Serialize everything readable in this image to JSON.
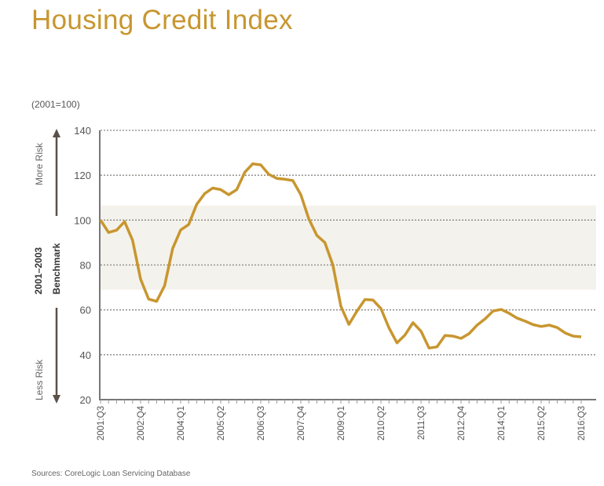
{
  "title": "Housing Credit Index",
  "source": "Sources:  CoreLogic Loan Servicing Database",
  "colors": {
    "line": "#c8962f",
    "title": "#c8962f",
    "band": "#f4f2ec",
    "axis": "#777777"
  },
  "chart_data": {
    "type": "line",
    "title": "Housing Credit Index",
    "ylabel": "(2001=100)",
    "ylim": [
      20,
      140
    ],
    "yticks": [
      20,
      40,
      60,
      80,
      100,
      120,
      140
    ],
    "grid": "horizontal dotted",
    "annotations": {
      "more_risk": "More Risk",
      "less_risk": "Less Risk",
      "benchmark_line1": "2001–2003",
      "benchmark_line2": "Benchmark"
    },
    "benchmark_band": [
      69,
      106.5
    ],
    "xtick_labels": [
      "2001:Q3",
      "2002:Q4",
      "2004:Q1",
      "2005:Q2",
      "2006:Q3",
      "2007:Q4",
      "2009:Q1",
      "2010:Q2",
      "2011:Q3",
      "2012:Q4",
      "2014:Q1",
      "2015:Q2",
      "2016:Q3"
    ],
    "x_start": "2001:Q3",
    "x_end": "2016:Q3",
    "values": [
      100,
      94.5,
      95.5,
      99.3,
      91,
      73.7,
      64.8,
      63.8,
      70.8,
      87.3,
      95.6,
      98,
      107,
      111.8,
      114.3,
      113.6,
      111.3,
      113.6,
      121.3,
      125.1,
      124.6,
      120.4,
      118.6,
      118.2,
      117.6,
      111.3,
      100.5,
      93.2,
      90,
      80,
      61.6,
      53.5,
      59.4,
      64.6,
      64.4,
      60.6,
      52,
      45.3,
      48.8,
      54.3,
      50.5,
      43,
      43.5,
      48.6,
      48.3,
      47.3,
      49.4,
      53.2,
      56,
      59.5,
      60.2,
      58.5,
      56.3,
      55,
      53.4,
      52.6,
      53.2,
      52.1,
      49.7,
      48.3,
      48
    ]
  }
}
